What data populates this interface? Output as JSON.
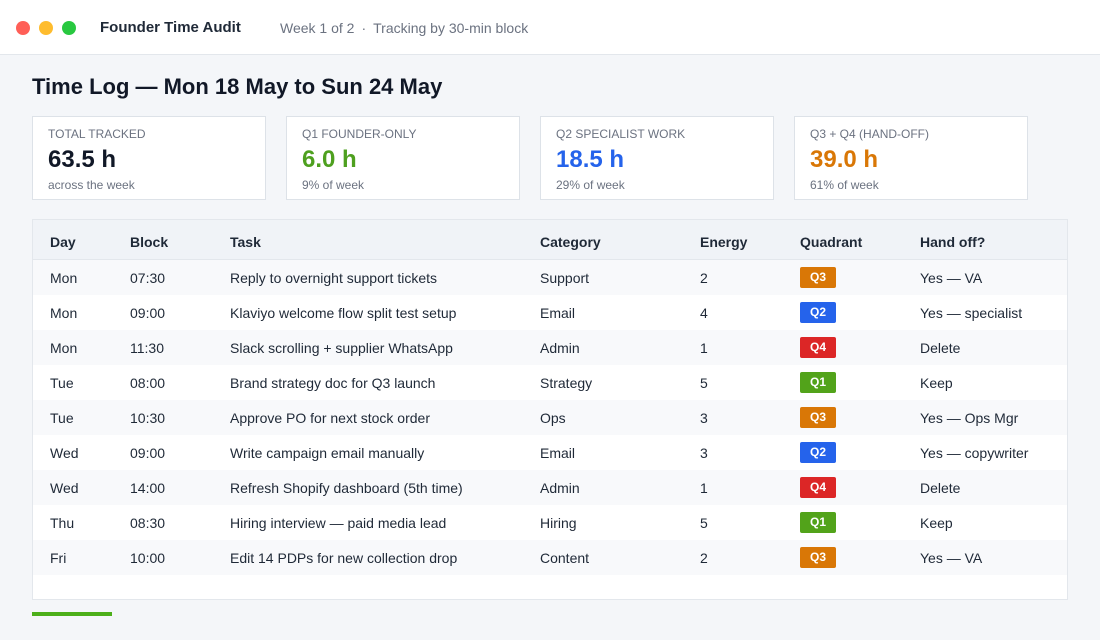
{
  "window": {
    "title": "Founder Time Audit",
    "week_label": "Week 1 of 2",
    "separator": "·",
    "tracking_label": "Tracking by 30-min block"
  },
  "page": {
    "title": "Time Log — Mon 18 May to Sun 24 May"
  },
  "stats": [
    {
      "label": "Total tracked",
      "value": "63.5 h",
      "note": "across the week",
      "color": "#111827"
    },
    {
      "label": "Q1 Founder-only",
      "value": "6.0 h",
      "note": "9% of week",
      "color": "#4ea01f"
    },
    {
      "label": "Q2 Specialist work",
      "value": "18.5 h",
      "note": "29% of week",
      "color": "#2563eb"
    },
    {
      "label": "Q3 + Q4 (hand-off)",
      "value": "39.0 h",
      "note": "61% of week",
      "color": "#d97706"
    }
  ],
  "table": {
    "columns": [
      "Day",
      "Block",
      "Task",
      "Category",
      "Energy",
      "Quadrant",
      "Hand off?"
    ],
    "rows": [
      {
        "day": "Mon",
        "block": "07:30",
        "task": "Reply to overnight support tickets",
        "category": "Support",
        "energy": "2",
        "quadrant": "Q3",
        "handoff": "Yes — VA"
      },
      {
        "day": "Mon",
        "block": "09:00",
        "task": "Klaviyo welcome flow split test setup",
        "category": "Email",
        "energy": "4",
        "quadrant": "Q2",
        "handoff": "Yes — specialist"
      },
      {
        "day": "Mon",
        "block": "11:30",
        "task": "Slack scrolling + supplier WhatsApp",
        "category": "Admin",
        "energy": "1",
        "quadrant": "Q4",
        "handoff": "Delete"
      },
      {
        "day": "Tue",
        "block": "08:00",
        "task": "Brand strategy doc for Q3 launch",
        "category": "Strategy",
        "energy": "5",
        "quadrant": "Q1",
        "handoff": "Keep"
      },
      {
        "day": "Tue",
        "block": "10:30",
        "task": "Approve PO for next stock order",
        "category": "Ops",
        "energy": "3",
        "quadrant": "Q3",
        "handoff": "Yes — Ops Mgr"
      },
      {
        "day": "Wed",
        "block": "09:00",
        "task": "Write campaign email manually",
        "category": "Email",
        "energy": "3",
        "quadrant": "Q2",
        "handoff": "Yes — copywriter"
      },
      {
        "day": "Wed",
        "block": "14:00",
        "task": "Refresh Shopify dashboard (5th time)",
        "category": "Admin",
        "energy": "1",
        "quadrant": "Q4",
        "handoff": "Delete"
      },
      {
        "day": "Thu",
        "block": "08:30",
        "task": "Hiring interview — paid media lead",
        "category": "Hiring",
        "energy": "5",
        "quadrant": "Q1",
        "handoff": "Keep"
      },
      {
        "day": "Fri",
        "block": "10:00",
        "task": "Edit 14 PDPs for new collection drop",
        "category": "Content",
        "energy": "2",
        "quadrant": "Q3",
        "handoff": "Yes — VA"
      }
    ]
  },
  "quadrant_colors": {
    "Q1": "#52a31a",
    "Q2": "#2563eb",
    "Q3": "#d97706",
    "Q4": "#dc2626"
  },
  "progress": {
    "fraction": 0.077,
    "color": "#4caf1a"
  }
}
